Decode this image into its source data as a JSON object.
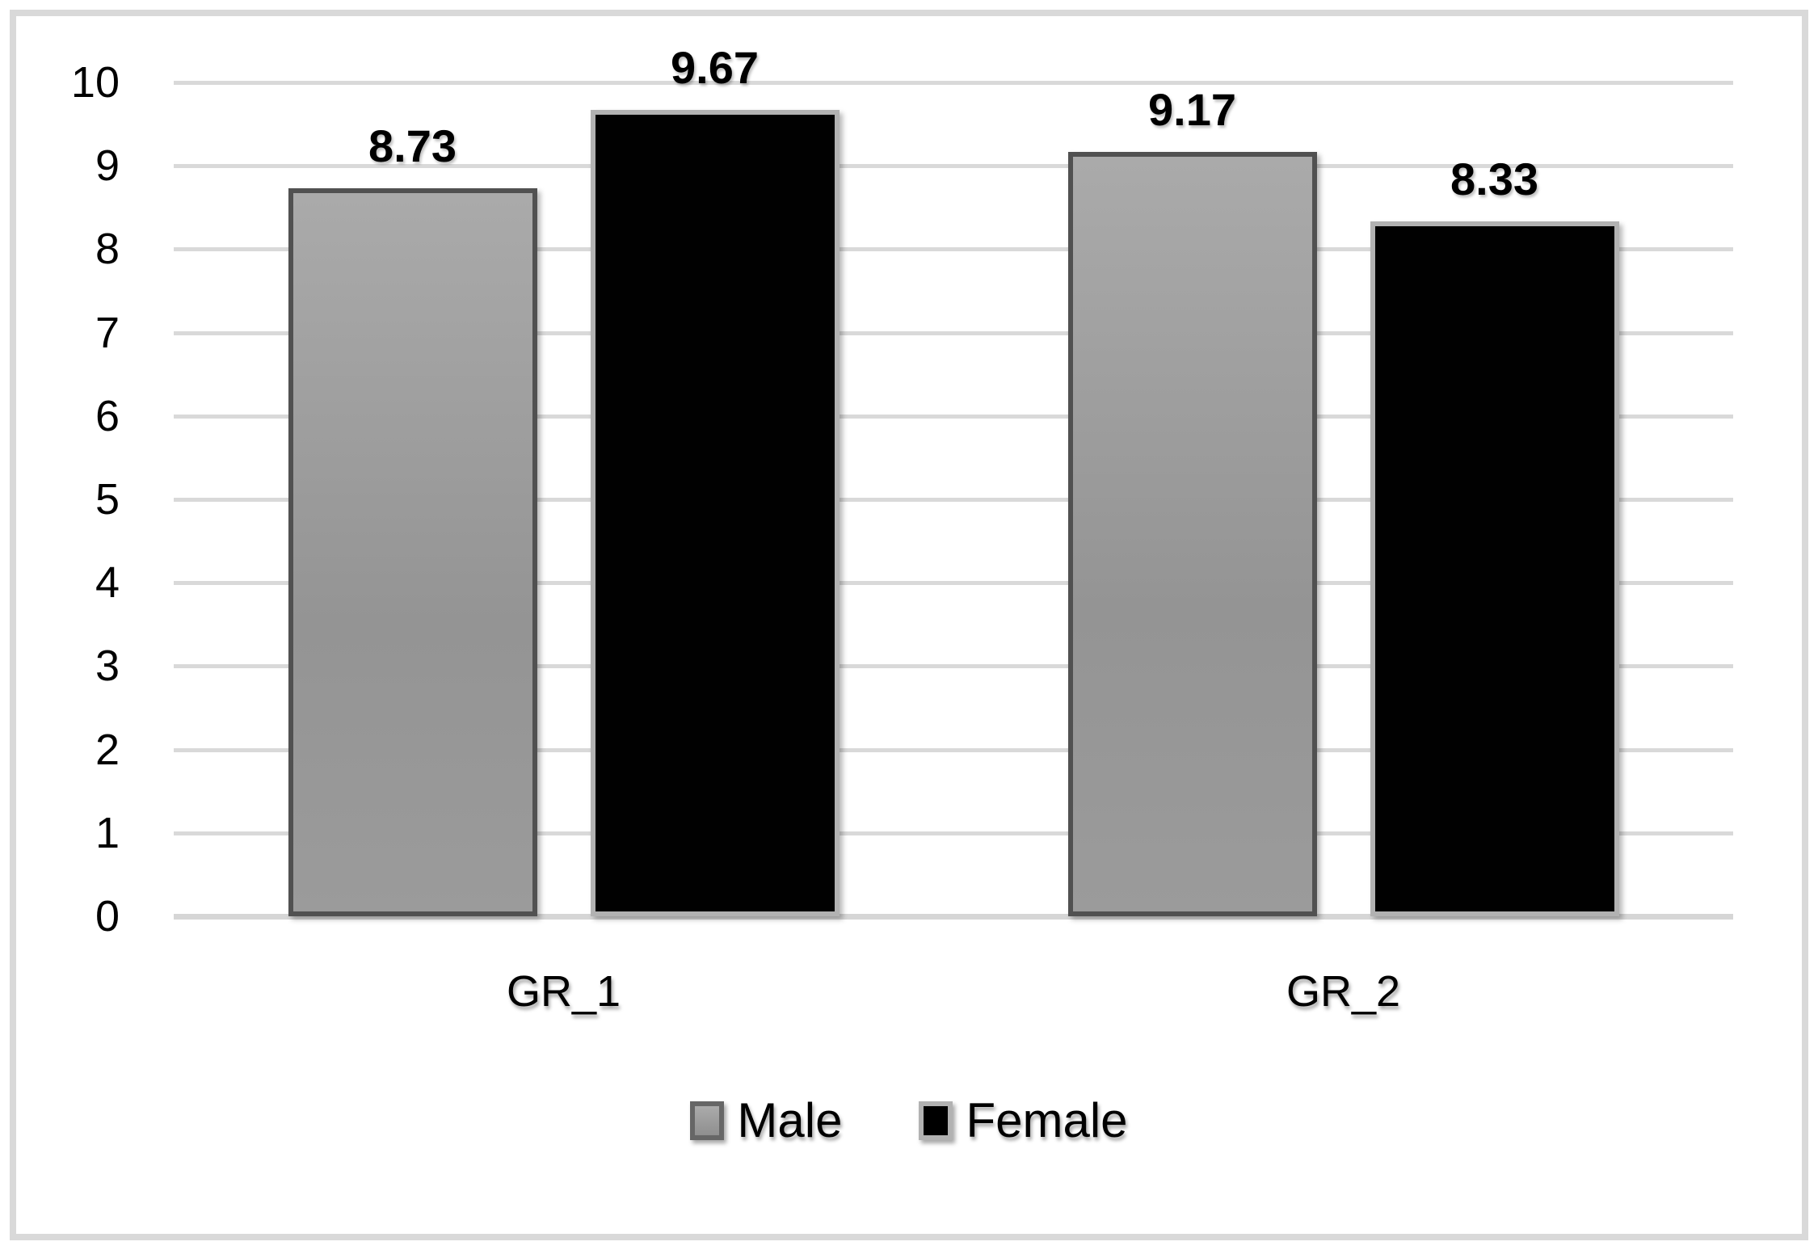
{
  "chart_data": {
    "type": "bar",
    "categories": [
      "GR_1",
      "GR_2"
    ],
    "series": [
      {
        "name": "Male",
        "values": [
          8.73,
          9.17
        ],
        "labels": [
          "8.73",
          "9.17"
        ],
        "fill_color": "#9b9b9b",
        "border_color": "#515151"
      },
      {
        "name": "Female",
        "values": [
          9.67,
          8.33
        ],
        "labels": [
          "9.67",
          "8.33"
        ],
        "fill_color": "#010101",
        "border_color": "#b2b2b2"
      }
    ],
    "title": "",
    "xlabel": "",
    "ylabel": "",
    "y_axis": {
      "min": 0,
      "max": 10,
      "step": 1,
      "ticks": [
        "0",
        "1",
        "2",
        "3",
        "4",
        "5",
        "6",
        "7",
        "8",
        "9",
        "10"
      ]
    },
    "grid": true,
    "gridline_color": "#d9d9d9",
    "frame_color": "#d9d9d9",
    "legend": {
      "position": "bottom",
      "entries": [
        "Male",
        "Female"
      ]
    }
  }
}
